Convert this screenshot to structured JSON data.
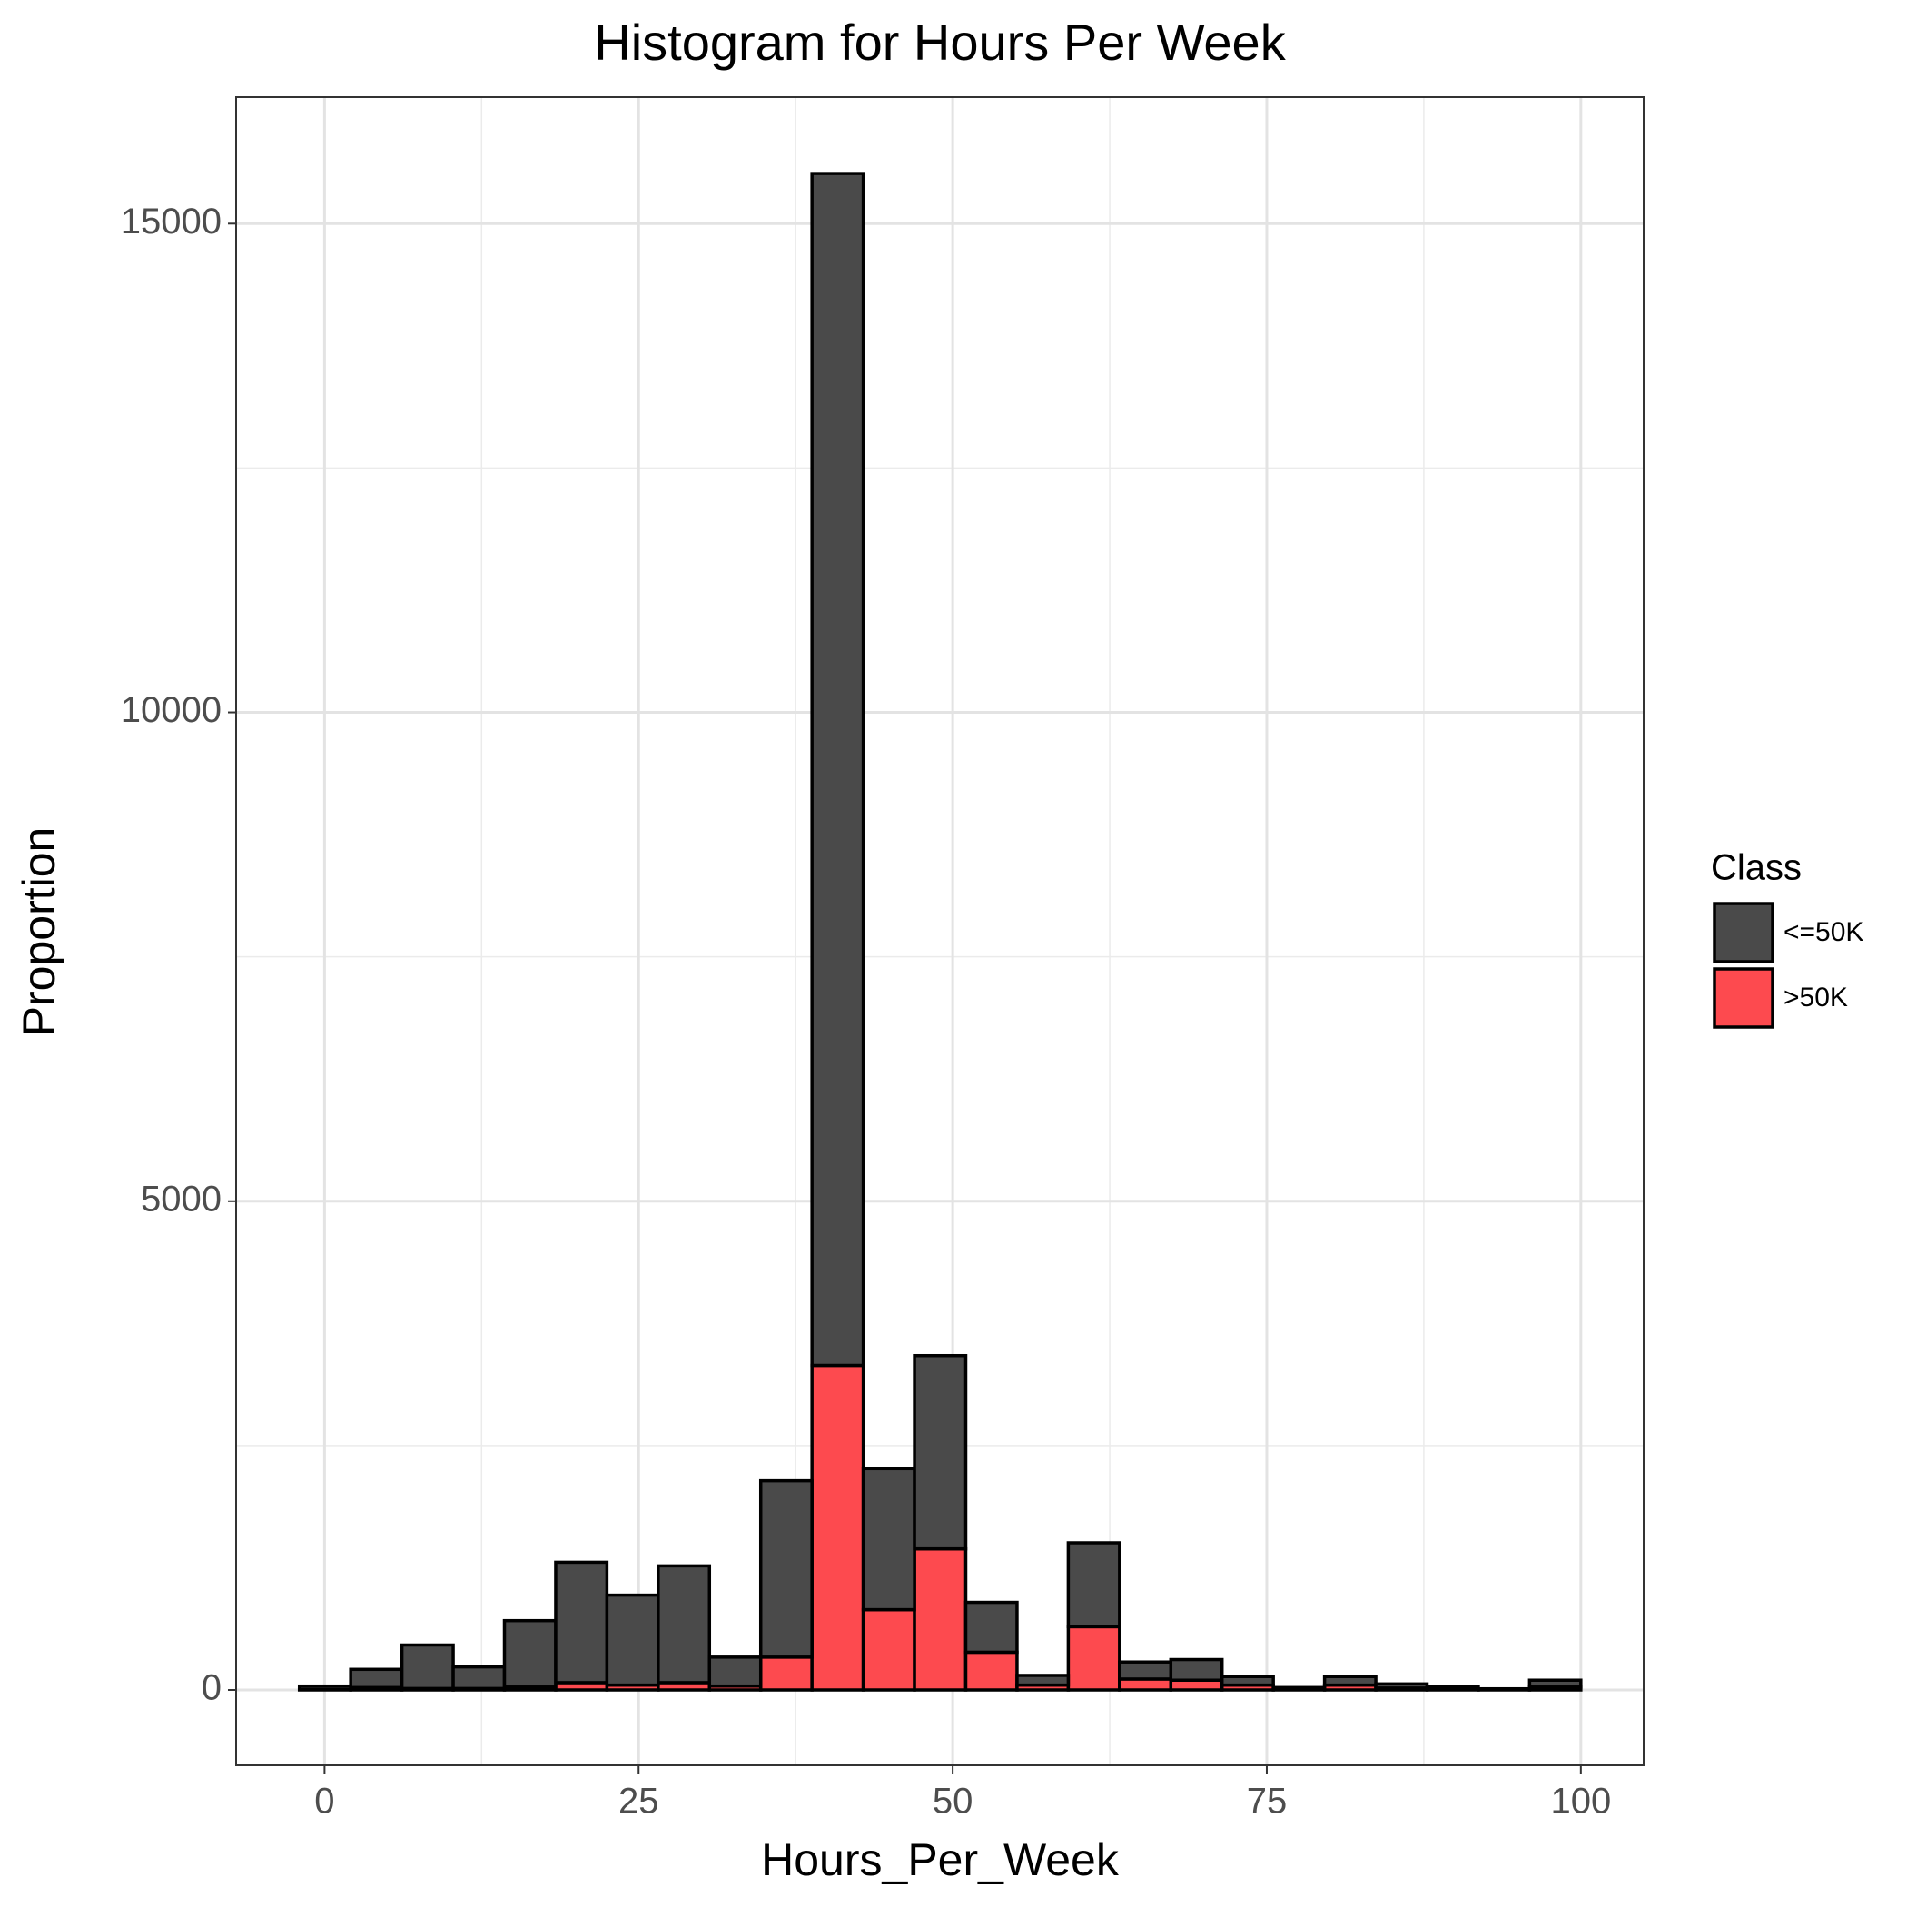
{
  "chart_data": {
    "type": "histogram",
    "title": "Histogram for Hours Per Week",
    "x_label": "Hours_Per_Week",
    "y_label": "Proportion",
    "legend_title": "Class",
    "legend_position": "right",
    "stacked": true,
    "grid": true,
    "bins": [
      -2,
      2.08,
      6.16,
      10.24,
      14.32,
      18.4,
      22.48,
      26.56,
      30.64,
      34.72,
      38.8,
      42.88,
      46.96,
      51.04,
      55.12,
      59.2,
      63.28,
      67.36,
      71.44,
      75.52,
      79.6,
      83.68,
      87.76,
      91.84,
      95.92,
      100
    ],
    "series": [
      {
        "name": ">50K",
        "color": "#fd4a4f",
        "values": [
          5,
          25,
          15,
          15,
          30,
          75,
          50,
          75,
          40,
          336,
          3321,
          821,
          1443,
          386,
          50,
          647,
          112,
          100,
          50,
          5,
          50,
          20,
          10,
          5,
          30
        ]
      },
      {
        "name": "<=50K",
        "color": "#4a4a4a",
        "values": [
          35,
          186,
          445,
          221,
          679,
          1231,
          920,
          1194,
          296,
          1804,
          12192,
          1443,
          1978,
          510,
          99,
          858,
          174,
          211,
          87,
          20,
          87,
          42,
          27,
          7,
          70
        ]
      }
    ],
    "xlim": [
      -7.04,
      105.0
    ],
    "ylim": [
      -771,
      16294
    ],
    "xticks": [
      0,
      25,
      50,
      75,
      100
    ],
    "yticks": [
      0,
      5000,
      10000,
      15000
    ],
    "xminorticks": [
      12.5,
      37.5,
      62.5,
      87.5
    ],
    "yminorticks": [
      2500,
      7500,
      12500
    ]
  }
}
